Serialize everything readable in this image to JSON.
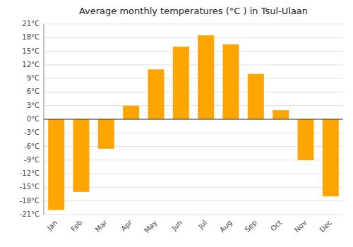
{
  "chart_data": {
    "type": "bar",
    "title": "Average monthly temperatures (°C ) in Tsul-Ulaan",
    "categories": [
      "Jan",
      "Feb",
      "Mar",
      "Apr",
      "May",
      "Jun",
      "Jul",
      "Aug",
      "Sep",
      "Oct",
      "Nov",
      "Dec"
    ],
    "values": [
      -20,
      -16,
      -6.5,
      3,
      11,
      16,
      18.5,
      16.5,
      10,
      2,
      -9,
      -17
    ],
    "color": "#FFA500",
    "ylim": [
      -21,
      21
    ],
    "yticks": [
      {
        "value": -21,
        "label": "-21°C"
      },
      {
        "value": -18,
        "label": "-18°C"
      },
      {
        "value": -15,
        "label": "-15°C"
      },
      {
        "value": -12,
        "label": "-12°C"
      },
      {
        "value": -9,
        "label": "-9°C"
      },
      {
        "value": -6,
        "label": "-6°C"
      },
      {
        "value": -3,
        "label": "-3°C"
      },
      {
        "value": 0,
        "label": "0°C"
      },
      {
        "value": 3,
        "label": "3°C"
      },
      {
        "value": 6,
        "label": "6°C"
      },
      {
        "value": 9,
        "label": "9°C"
      },
      {
        "value": 12,
        "label": "12°C"
      },
      {
        "value": 15,
        "label": "15°C"
      },
      {
        "value": 18,
        "label": "18°C"
      },
      {
        "value": 21,
        "label": "21°C"
      }
    ],
    "grid": true
  }
}
